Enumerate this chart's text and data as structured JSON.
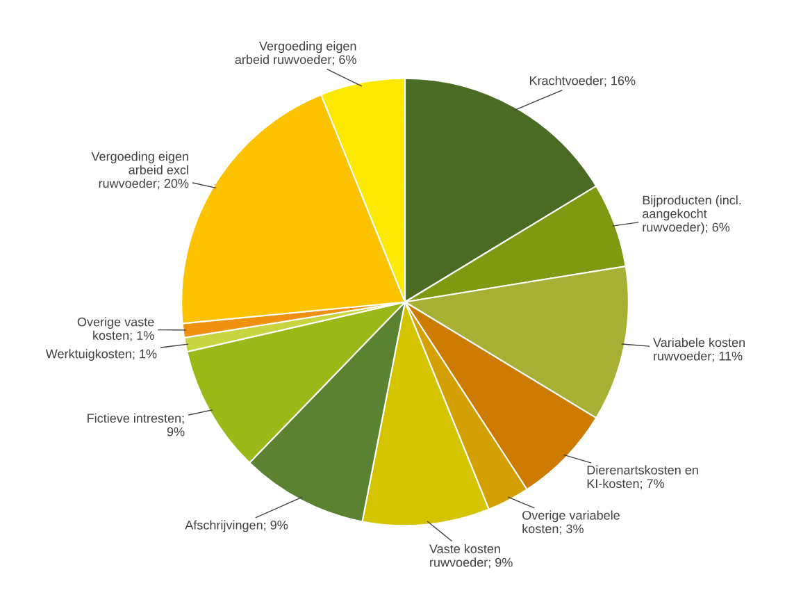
{
  "chart_data": {
    "type": "pie",
    "categories": [
      "Krachtvoeder; 16%",
      "Bijproducten (incl. aangekocht ruwvoeder); 6%",
      "Variabele kosten ruwvoeder; 11%",
      "Dierenartskosten en KI-kosten; 7%",
      "Overige variabele kosten; 3%",
      "Vaste kosten ruwvoeder; 9%",
      "Afschrijvingen; 9%",
      "Fictieve intresten; 9%",
      "Werktuigkosten; 1%",
      "Overige vaste kosten; 1%",
      "Vergoeding eigen arbeid excl ruwvoeder; 20%",
      "Vergoeding eigen arbeid ruwvoeder; 6%"
    ],
    "values": [
      16,
      6,
      11,
      7,
      3,
      9,
      9,
      9,
      1,
      1,
      20,
      6
    ],
    "colors": [
      "#4a6b24",
      "#7f9a12",
      "#a8b034",
      "#cc7a00",
      "#d4a000",
      "#d4c400",
      "#5a8230",
      "#9ab818",
      "#c8d440",
      "#f09010",
      "#fcc200",
      "#fce800"
    ],
    "legend": false
  }
}
